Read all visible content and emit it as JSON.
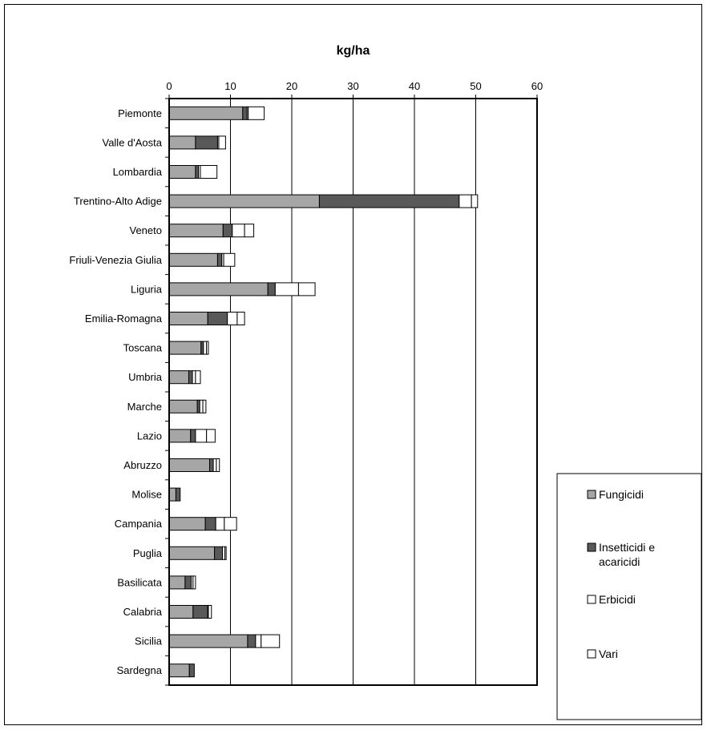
{
  "chart_data": {
    "type": "bar",
    "orientation": "horizontal",
    "stacked": true,
    "title": "kg/ha",
    "xlim": [
      0,
      60
    ],
    "xticks": [
      0,
      10,
      20,
      30,
      40,
      50,
      60
    ],
    "axis_position": "top",
    "grid": true,
    "legend_position": "right",
    "categories": [
      "Piemonte",
      "Valle d'Aosta",
      "Lombardia",
      "Trentino-Alto Adige",
      "Veneto",
      "Friuli-Venezia Giulia",
      "Liguria",
      "Emilia-Romagna",
      "Toscana",
      "Umbria",
      "Marche",
      "Lazio",
      "Abruzzo",
      "Molise",
      "Campania",
      "Puglia",
      "Basilicata",
      "Calabria",
      "Sicilia",
      "Sardegna"
    ],
    "series": [
      {
        "name": "Fungicidi",
        "color": "#a6a6a6",
        "values": [
          12.0,
          4.3,
          4.3,
          24.5,
          8.8,
          7.9,
          16.1,
          6.3,
          5.2,
          3.2,
          4.6,
          3.5,
          6.6,
          1.1,
          5.9,
          7.4,
          2.6,
          3.9,
          12.8,
          3.3
        ]
      },
      {
        "name": "Insetticidi e acaricidi",
        "color": "#595959",
        "values": [
          0.7,
          3.6,
          0.5,
          22.8,
          1.5,
          0.7,
          1.2,
          3.2,
          0.4,
          0.6,
          0.4,
          0.8,
          0.6,
          0.7,
          1.7,
          1.3,
          1.0,
          2.4,
          1.3,
          0.8
        ]
      },
      {
        "name": "Erbicidi",
        "color": "#ffffff",
        "values": [
          0.2,
          0.2,
          0.3,
          2.0,
          2.0,
          0.3,
          3.8,
          1.6,
          0.5,
          0.5,
          0.5,
          1.8,
          0.5,
          0.0,
          1.4,
          0.4,
          0.3,
          0.1,
          0.9,
          0.0
        ]
      },
      {
        "name": "Vari",
        "color": "#ffffff",
        "values": [
          2.6,
          1.1,
          2.7,
          1.0,
          1.5,
          1.8,
          2.7,
          1.2,
          0.3,
          0.8,
          0.5,
          1.4,
          0.5,
          0.0,
          2.0,
          0.2,
          0.4,
          0.5,
          3.0,
          0.0
        ]
      }
    ]
  }
}
